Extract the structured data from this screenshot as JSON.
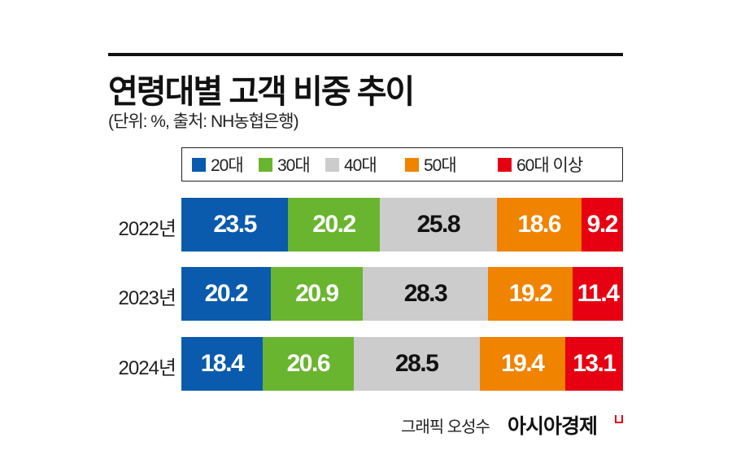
{
  "chart_data": {
    "type": "bar",
    "orientation": "horizontal-stacked-100",
    "title": "연령대별 고객 비중 추이",
    "subtitle": "(단위: %, 출처: NH농협은행)",
    "categories": [
      "2022년",
      "2023년",
      "2024년"
    ],
    "series": [
      {
        "name": "20대",
        "color": "#0a5aad",
        "text_color": "#ffffff",
        "values": [
          23.5,
          20.2,
          18.4
        ]
      },
      {
        "name": "30대",
        "color": "#6ab52f",
        "text_color": "#ffffff",
        "values": [
          20.2,
          20.9,
          20.6
        ]
      },
      {
        "name": "40대",
        "color": "#cccccc",
        "text_color": "#111111",
        "values": [
          25.8,
          28.3,
          28.5
        ]
      },
      {
        "name": "50대",
        "color": "#f08300",
        "text_color": "#ffffff",
        "values": [
          18.6,
          19.2,
          19.4
        ]
      },
      {
        "name": "60대 이상",
        "color": "#e60012",
        "text_color": "#ffffff",
        "values": [
          9.2,
          11.4,
          13.1
        ]
      }
    ],
    "legend_position": "top",
    "grid": false
  },
  "credit": "그래픽 오성수",
  "brand": "아시아경제"
}
